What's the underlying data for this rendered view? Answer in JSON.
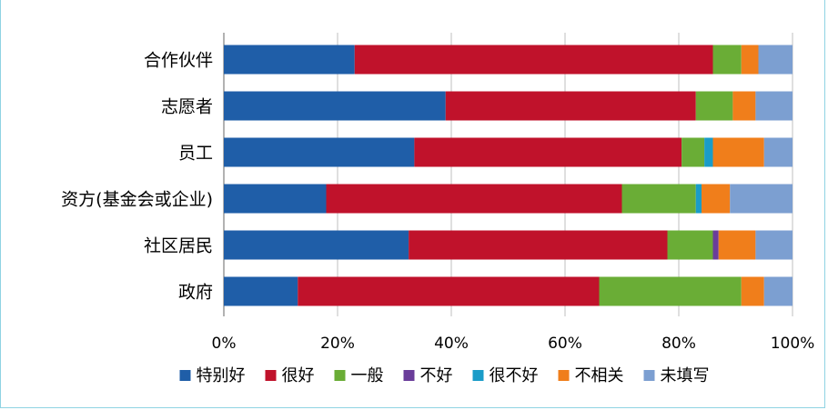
{
  "chart_data": {
    "type": "bar",
    "orientation": "horizontal",
    "stacked": "percent",
    "categories": [
      "合作伙伴",
      "志愿者",
      "员工",
      "资方(基金会或企业)",
      "社区居民",
      "政府"
    ],
    "series": [
      {
        "name": "特别好",
        "color": "#1f5ea8",
        "values": [
          23,
          39,
          33.5,
          18,
          32.5,
          13
        ]
      },
      {
        "name": "很好",
        "color": "#c0122b",
        "values": [
          63,
          44,
          47,
          52,
          45.5,
          53
        ]
      },
      {
        "name": "一般",
        "color": "#6aad36",
        "values": [
          5,
          6.5,
          4,
          13,
          8,
          25
        ]
      },
      {
        "name": "不好",
        "color": "#6a3d9a",
        "values": [
          0,
          0,
          0,
          0,
          1,
          0
        ]
      },
      {
        "name": "很不好",
        "color": "#1a9cc8",
        "values": [
          0,
          0,
          1.5,
          1,
          0,
          0
        ]
      },
      {
        "name": "不相关",
        "color": "#f07e1b",
        "values": [
          3,
          4,
          9,
          5,
          6.5,
          4
        ]
      },
      {
        "name": "未填写",
        "color": "#7c9fd1",
        "values": [
          6,
          6.5,
          5,
          11,
          6.5,
          5
        ]
      }
    ],
    "xlim": [
      0,
      100
    ],
    "xticks": [
      "0%",
      "20%",
      "40%",
      "60%",
      "80%",
      "100%"
    ],
    "grid": true,
    "legend_position": "bottom"
  }
}
